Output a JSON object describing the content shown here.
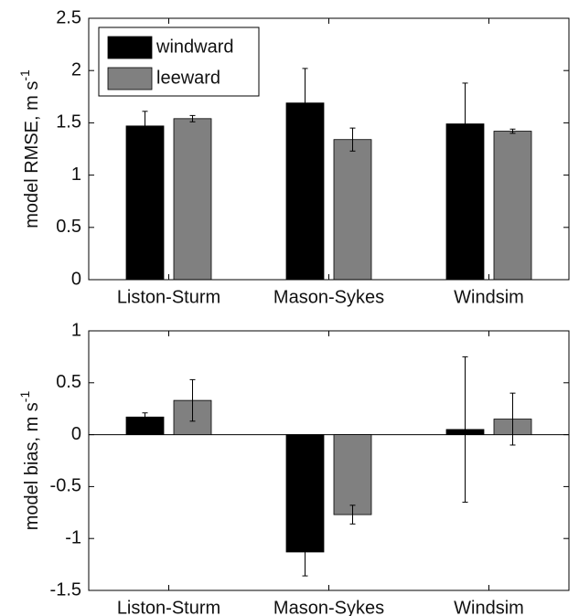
{
  "chart_data": [
    {
      "type": "bar",
      "ylabel": "model RMSE, m s",
      "ylabel_superscript": "-1",
      "categories": [
        "Liston-Sturm",
        "Mason-Sykes",
        "Windsim"
      ],
      "series": [
        {
          "name": "windward",
          "color": "#000000",
          "values": [
            1.47,
            1.69,
            1.49
          ],
          "errors": [
            0.14,
            0.33,
            0.39
          ]
        },
        {
          "name": "leeward",
          "color": "#808080",
          "values": [
            1.54,
            1.34,
            1.42
          ],
          "errors": [
            0.03,
            0.11,
            0.02
          ]
        }
      ],
      "ylim": [
        0,
        2.5
      ],
      "yticks": [
        0,
        0.5,
        1,
        1.5,
        2,
        2.5
      ],
      "legend": "upper left"
    },
    {
      "type": "bar",
      "ylabel": "model bias, m s",
      "ylabel_superscript": "-1",
      "categories": [
        "Liston-Sturm",
        "Mason-Sykes",
        "Windsim"
      ],
      "series": [
        {
          "name": "windward",
          "color": "#000000",
          "values": [
            0.17,
            -1.13,
            0.05
          ],
          "errors": [
            0.04,
            0.23,
            0.7
          ]
        },
        {
          "name": "leeward",
          "color": "#808080",
          "values": [
            0.33,
            -0.77,
            0.15
          ],
          "errors": [
            0.2,
            0.09,
            0.25
          ]
        }
      ],
      "ylim": [
        -1.5,
        1
      ],
      "yticks": [
        -1.5,
        -1,
        -0.5,
        0,
        0.5,
        1
      ],
      "zero_line": true
    }
  ]
}
